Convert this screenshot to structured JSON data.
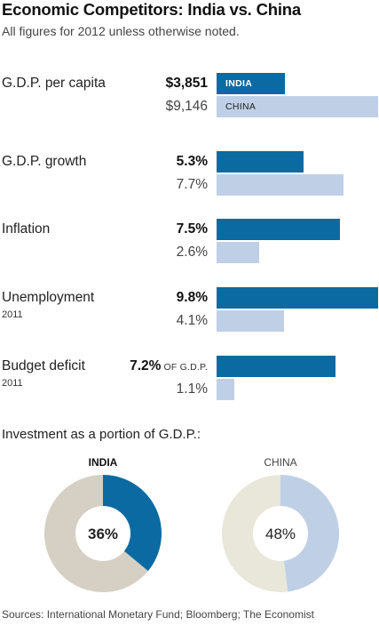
{
  "title": "Economic Competitors: India vs. China",
  "subtitle": "All figures for 2012 unless otherwise noted.",
  "bar_labels": {
    "india": "INDIA",
    "china": "CHINA"
  },
  "colors": {
    "india": "#0b6aa2",
    "china": "#bfd0e6",
    "india_remainder": "#d5d0c3",
    "china_remainder": "#e9e7d9"
  },
  "investment_title": "Investment as a portion of G.D.P.:",
  "source": "Sources: International Monetary Fund; Bloomberg; The Economist",
  "chart_data": [
    {
      "type": "bar",
      "orientation": "horizontal",
      "series": [
        {
          "name": "INDIA",
          "values": [
            3851,
            5.3,
            7.5,
            9.8,
            7.2
          ]
        },
        {
          "name": "CHINA",
          "values": [
            9146,
            7.7,
            2.6,
            4.1,
            1.1
          ]
        }
      ],
      "metrics": [
        {
          "label": "G.D.P. per capita",
          "note": "",
          "india": 3851,
          "china": 9146,
          "india_text": "$3,851",
          "china_text": "$9,146",
          "suffix": "",
          "max": 9146
        },
        {
          "label": "G.D.P. growth",
          "note": "",
          "india": 5.3,
          "china": 7.7,
          "india_text": "5.3%",
          "china_text": "7.7%",
          "suffix": "",
          "max": 9.8
        },
        {
          "label": "Inflation",
          "note": "",
          "india": 7.5,
          "china": 2.6,
          "india_text": "7.5%",
          "china_text": "2.6%",
          "suffix": "",
          "max": 9.8
        },
        {
          "label": "Unemployment",
          "note": "2011",
          "india": 9.8,
          "china": 4.1,
          "india_text": "9.8%",
          "china_text": "4.1%",
          "suffix": "",
          "max": 9.8
        },
        {
          "label": "Budget deficit",
          "note": "2011",
          "india": 7.2,
          "china": 1.1,
          "india_text": "7.2%",
          "china_text": "1.1%",
          "suffix": "OF G.D.P.",
          "max": 9.8
        }
      ]
    },
    {
      "type": "pie",
      "title": "Investment as a portion of G.D.P.:",
      "donuts": [
        {
          "name": "INDIA",
          "value": 36,
          "text": "36%"
        },
        {
          "name": "CHINA",
          "value": 48,
          "text": "48%"
        }
      ]
    }
  ]
}
